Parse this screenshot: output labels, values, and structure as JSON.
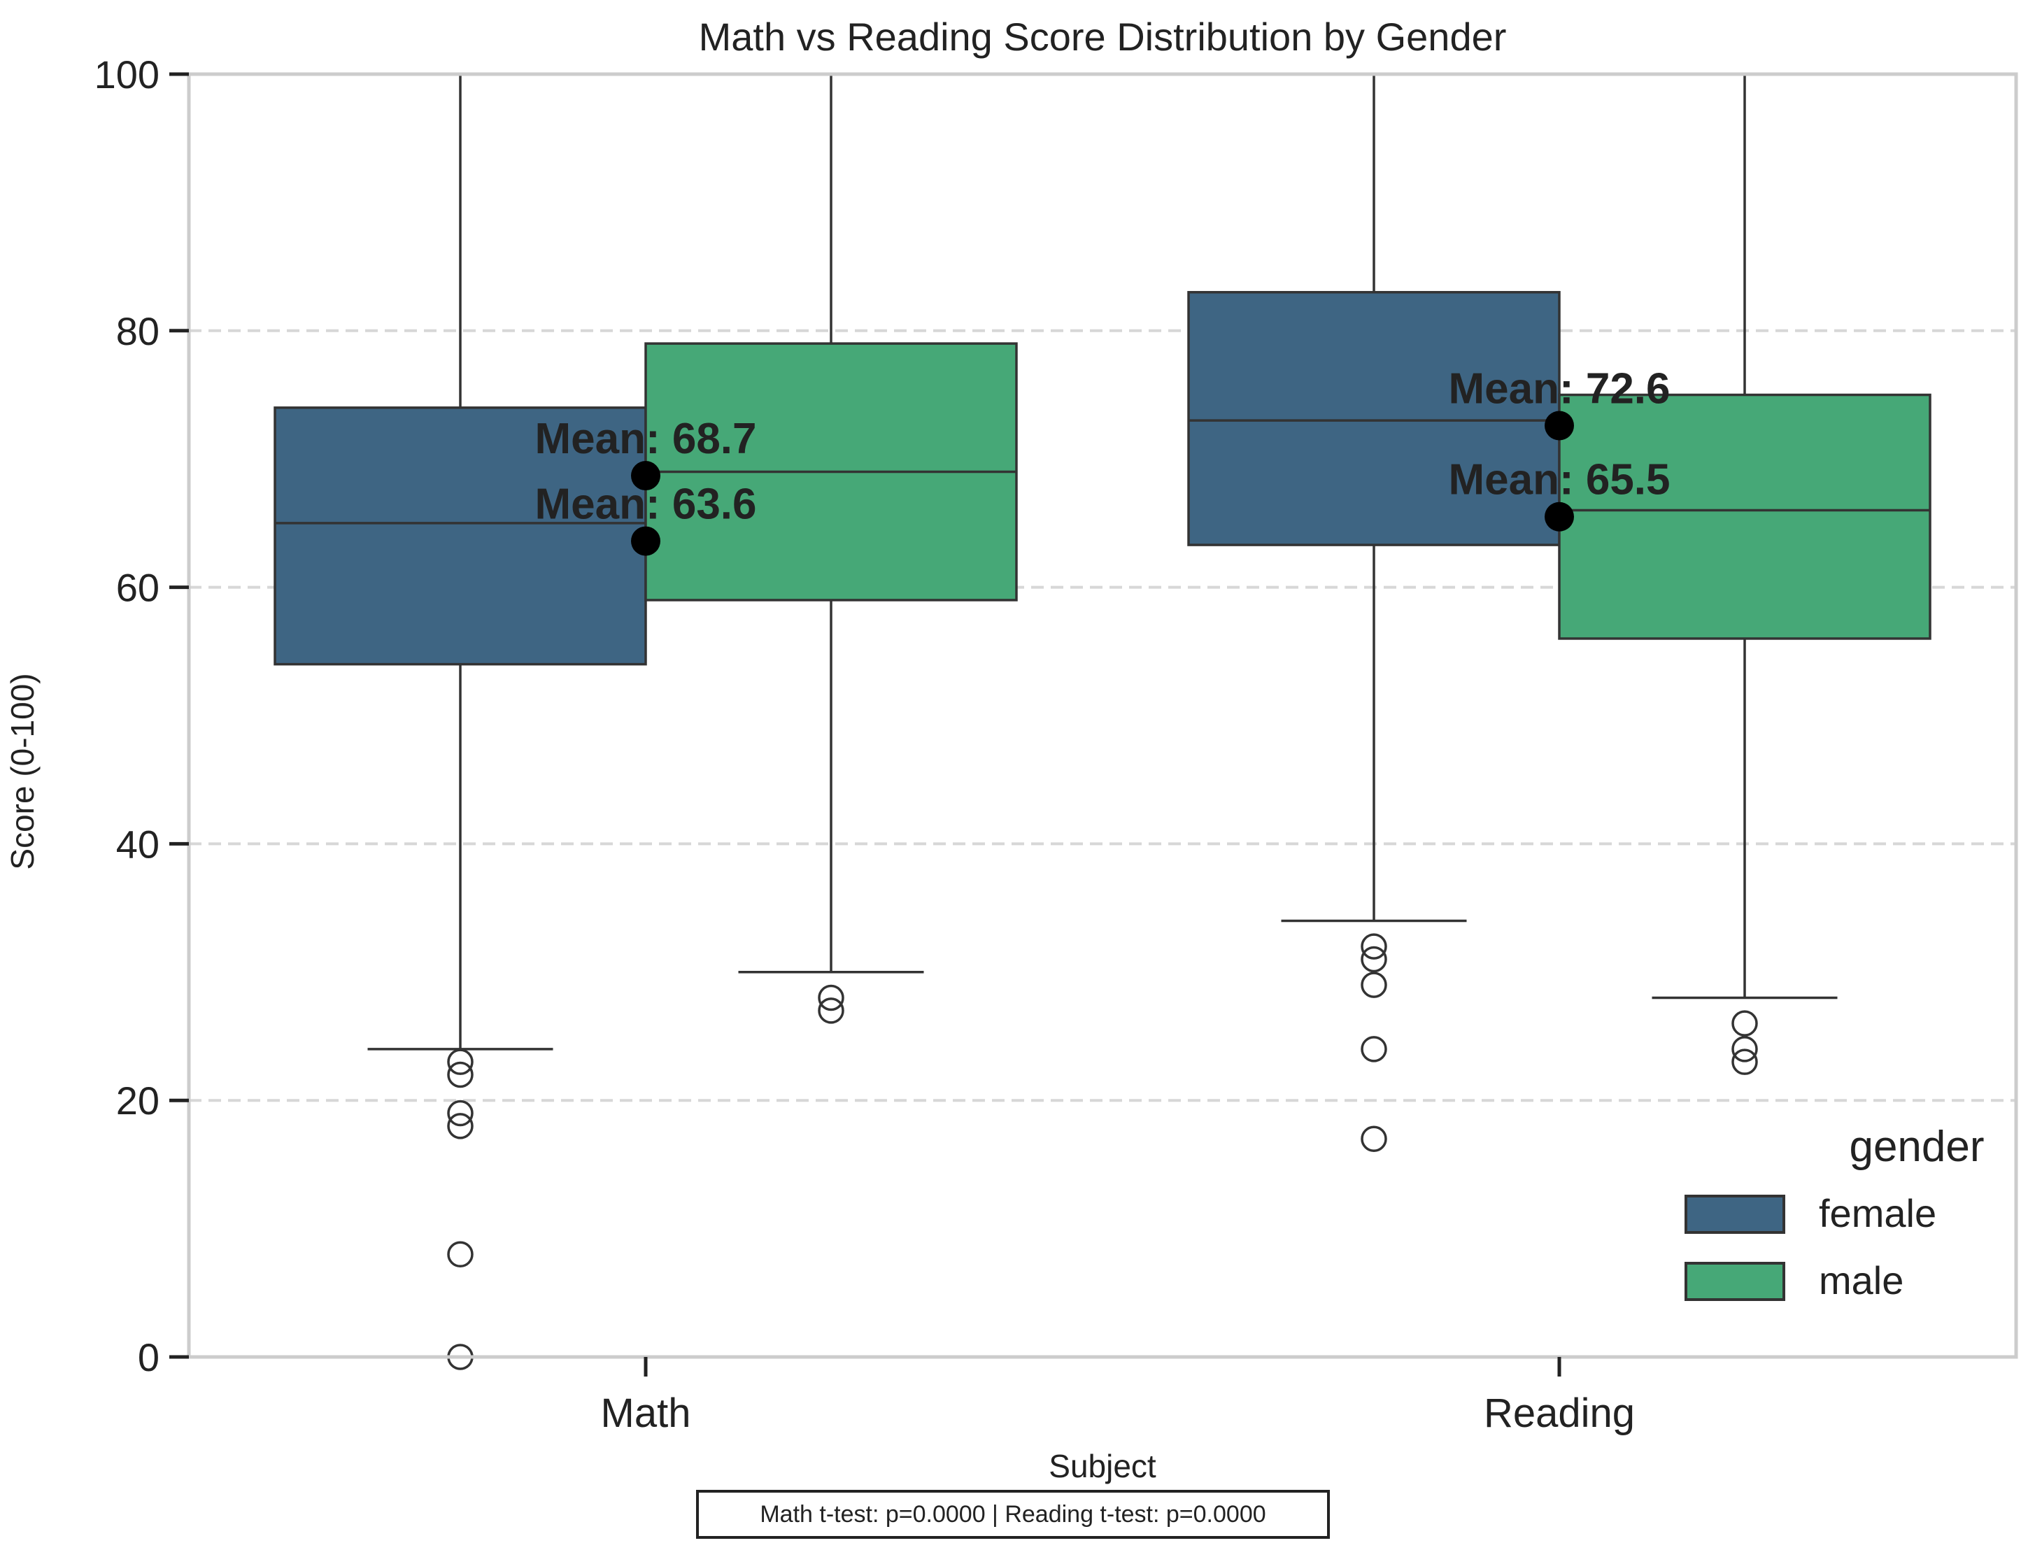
{
  "chart_data": {
    "type": "box",
    "title": "Math vs Reading Score Distribution by Gender",
    "xlabel": "Subject",
    "ylabel": "Score (0-100)",
    "categories": [
      "Math",
      "Reading"
    ],
    "ylim": [
      0,
      100
    ],
    "yticks": [
      0,
      20,
      40,
      60,
      80,
      100
    ],
    "grid": "horizontal dashed",
    "legend": {
      "title": "gender",
      "position": "bottom-right"
    },
    "series": [
      {
        "name": "female",
        "color": "#3e6583",
        "boxes": [
          {
            "category": "Math",
            "q1": 54,
            "median": 65,
            "q3": 74,
            "whisker_low": 24,
            "whisker_high": 100,
            "mean": 63.6,
            "mean_label": "Mean: 63.6",
            "outliers": [
              23,
              22,
              19,
              18,
              8,
              0
            ]
          },
          {
            "category": "Reading",
            "q1": 63.3,
            "median": 73,
            "q3": 83,
            "whisker_low": 34,
            "whisker_high": 100,
            "mean": 72.6,
            "mean_label": "Mean: 72.6",
            "outliers": [
              32,
              31,
              29,
              24,
              17
            ]
          }
        ]
      },
      {
        "name": "male",
        "color": "#46a877",
        "boxes": [
          {
            "category": "Math",
            "q1": 59,
            "median": 69,
            "q3": 79,
            "whisker_low": 30,
            "whisker_high": 100,
            "mean": 68.7,
            "mean_label": "Mean: 68.7",
            "outliers": [
              28,
              27
            ]
          },
          {
            "category": "Reading",
            "q1": 56,
            "median": 66,
            "q3": 75,
            "whisker_low": 28,
            "whisker_high": 100,
            "mean": 65.5,
            "mean_label": "Mean: 65.5",
            "outliers": [
              26,
              24,
              23
            ]
          }
        ]
      }
    ]
  },
  "footnote": "Math t-test: p=0.0000 | Reading t-test: p=0.0000"
}
